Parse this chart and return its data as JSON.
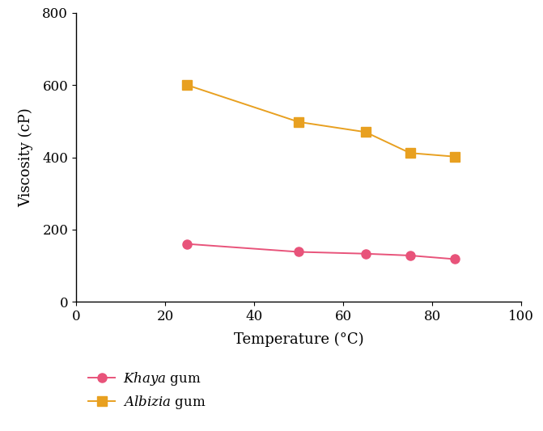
{
  "khaya_x": [
    25,
    50,
    65,
    75,
    85
  ],
  "khaya_y": [
    160,
    138,
    133,
    128,
    118
  ],
  "albizia_x": [
    25,
    50,
    65,
    75,
    85
  ],
  "albizia_y": [
    600,
    498,
    470,
    412,
    402
  ],
  "khaya_color": "#e8537a",
  "albizia_color": "#e8a020",
  "xlabel": "Temperature (°C)",
  "ylabel": "Viscosity (cP)",
  "xlim": [
    0,
    100
  ],
  "ylim": [
    0,
    800
  ],
  "xticks": [
    0,
    20,
    40,
    60,
    80,
    100
  ],
  "yticks": [
    0,
    200,
    400,
    600,
    800
  ],
  "marker_size": 8,
  "linewidth": 1.4,
  "font_size_label": 13,
  "font_size_tick": 12
}
